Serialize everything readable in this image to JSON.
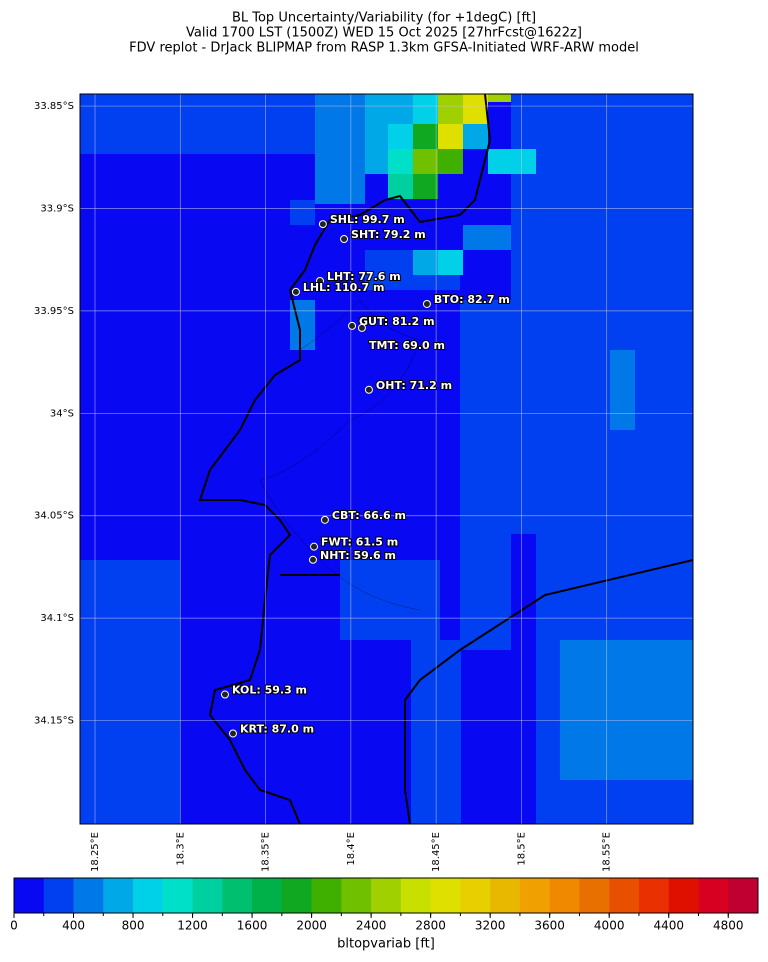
{
  "chart_data": {
    "type": "map",
    "title": [
      "BL Top Uncertainty/Variability (for +1degC) [ft]",
      "Valid 1700 LST (1500Z) WED 15 Oct 2025 [27hrFcst@1622z]",
      "FDV replot - DrJack BLIPMAP from RASP 1.3km GFSA-Initiated WRF-ARW model"
    ],
    "lonlim": [
      18.2412,
      18.6006
    ],
    "latlim": [
      -33.8441,
      -34.2005
    ],
    "lat_ticks": [
      {
        "value": -33.85,
        "label": "33.85°S"
      },
      {
        "value": -33.9,
        "label": "33.9°S"
      },
      {
        "value": -33.95,
        "label": "33.95°S"
      },
      {
        "value": -34.0,
        "label": "34°S"
      },
      {
        "value": -34.05,
        "label": "34.05°S"
      },
      {
        "value": -34.1,
        "label": "34.1°S"
      },
      {
        "value": -34.15,
        "label": "34.15°S"
      }
    ],
    "lon_ticks": [
      {
        "value": 18.25,
        "label": "18.25°E"
      },
      {
        "value": 18.3,
        "label": "18.3°E"
      },
      {
        "value": 18.35,
        "label": "18.35°E"
      },
      {
        "value": 18.4,
        "label": "18.4°E"
      },
      {
        "value": 18.45,
        "label": "18.45°E"
      },
      {
        "value": 18.5,
        "label": "18.5°E"
      },
      {
        "value": 18.55,
        "label": "18.55°E"
      }
    ],
    "stations": [
      {
        "label": "SHL: 99.7 m",
        "lon": 18.3836,
        "lat": -33.9076
      },
      {
        "label": "SHT: 79.2 m",
        "lon": 18.396,
        "lat": -33.9149
      },
      {
        "label": "LHT: 77.6 m",
        "lon": 18.3819,
        "lat": -33.9354
      },
      {
        "label": "LHL: 110.7 m",
        "lon": 18.3678,
        "lat": -33.9407
      },
      {
        "label": "BTO: 82.7 m",
        "lon": 18.4446,
        "lat": -33.9466
      },
      {
        "label": "GUT: 81.2 m",
        "lon": 18.4007,
        "lat": -33.9573
      },
      {
        "label": "TMT: 69.0 m",
        "lon": 18.4065,
        "lat": -33.9583
      },
      {
        "label": "OHT: 71.2 m",
        "lon": 18.4106,
        "lat": -33.9885
      },
      {
        "label": "CBT: 66.6 m",
        "lon": 18.3848,
        "lat": -34.052
      },
      {
        "label": "FWT: 61.5 m",
        "lon": 18.3784,
        "lat": -34.0651
      },
      {
        "label": "NHT: 59.6 m",
        "lon": 18.3778,
        "lat": -34.0715
      },
      {
        "label": "KOL: 59.3 m",
        "lon": 18.3262,
        "lat": -34.1373
      },
      {
        "label": "KRT: 87.0 m",
        "lon": 18.3309,
        "lat": -34.1563
      }
    ],
    "colorbar": {
      "label": "bltopvariab [ft]",
      "clim": [
        0,
        5000
      ],
      "ticks": [
        0,
        400,
        800,
        1200,
        1600,
        2000,
        2400,
        2800,
        3200,
        3600,
        4000,
        4400,
        4800
      ],
      "colors": [
        "#0808f2",
        "#0040f0",
        "#0078e8",
        "#00a8e8",
        "#00d0e8",
        "#00e0c8",
        "#00d0a0",
        "#00c070",
        "#00b048",
        "#10a820",
        "#40b000",
        "#70c000",
        "#a0d000",
        "#c8e000",
        "#e0e000",
        "#e8d000",
        "#e8b800",
        "#f0a000",
        "#f08800",
        "#e87000",
        "#e85000",
        "#e83000",
        "#e01000",
        "#d80020",
        "#c00030"
      ]
    }
  }
}
